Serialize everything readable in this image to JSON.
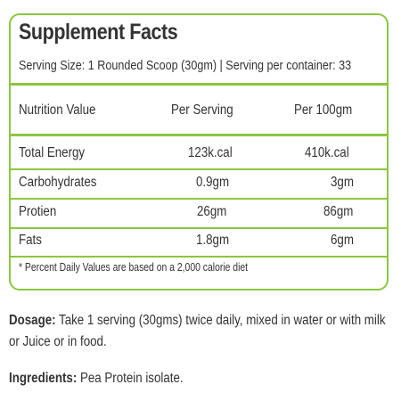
{
  "panel": {
    "title": "Supplement Facts",
    "serving_line": "Serving Size: 1 Rounded Scoop (30gm) |   Serving per container: 33",
    "header": {
      "col1": "Nutrition Value",
      "col2": "Per Serving",
      "col3": "Per 100gm"
    },
    "rows": [
      {
        "name": "Total Energy",
        "per_serving": "123k.cal",
        "per_100": "410k.cal"
      },
      {
        "name": "Carbohydrates",
        "per_serving": "0.9gm",
        "per_100": "3gm"
      },
      {
        "name": "Protien",
        "per_serving": "26gm",
        "per_100": "86gm"
      },
      {
        "name": "Fats",
        "per_serving": "1.8gm",
        "per_100": "6gm"
      }
    ],
    "footnote": "* Percent Daily Values are based on a 2,000 calorie diet"
  },
  "dosage": {
    "label": "Dosage:",
    "text": " Take 1 serving (30gms) twice daily, mixed in water or with milk or Juice or in food."
  },
  "ingredients": {
    "label": "Ingredients:",
    "text": " Pea Protein isolate."
  },
  "colors": {
    "accent": "#8cc63f",
    "text": "#333333"
  }
}
